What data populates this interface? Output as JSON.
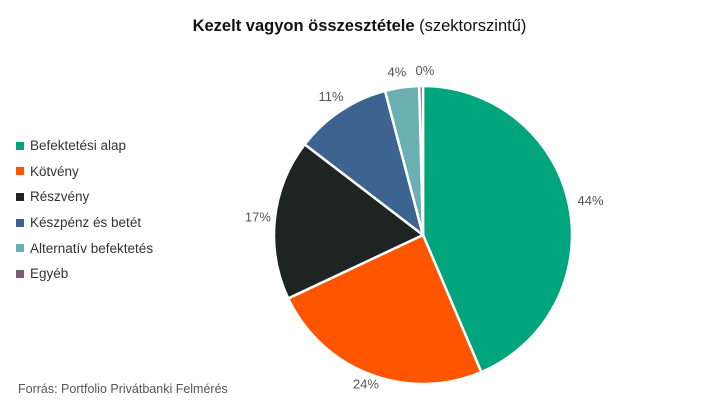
{
  "chart_data": {
    "type": "pie",
    "title": "Kezelt vagyon összesztétele",
    "subtitle": "(szektorszintű)",
    "categories": [
      "Befektetési alap",
      "Kötvény",
      "Részvény",
      "Készpénz és betét",
      "Alternatív befektetés",
      "Egyéb"
    ],
    "values": [
      44,
      24,
      17,
      11,
      4,
      0
    ],
    "value_labels": [
      "44%",
      "24%",
      "17%",
      "11%",
      "4%",
      "0%"
    ],
    "slice_shares": [
      43.6,
      24.4,
      17.4,
      10.5,
      3.7,
      0.4
    ],
    "colors": [
      "#00A47D",
      "#FF5500",
      "#1E2421",
      "#3D6490",
      "#6AAFB2",
      "#7D5A72"
    ],
    "legend_position": "left",
    "start_angle_deg": 0,
    "direction": "clockwise"
  },
  "footer": {
    "source": "Forrás: Portfolio Privátbanki Felmérés"
  }
}
